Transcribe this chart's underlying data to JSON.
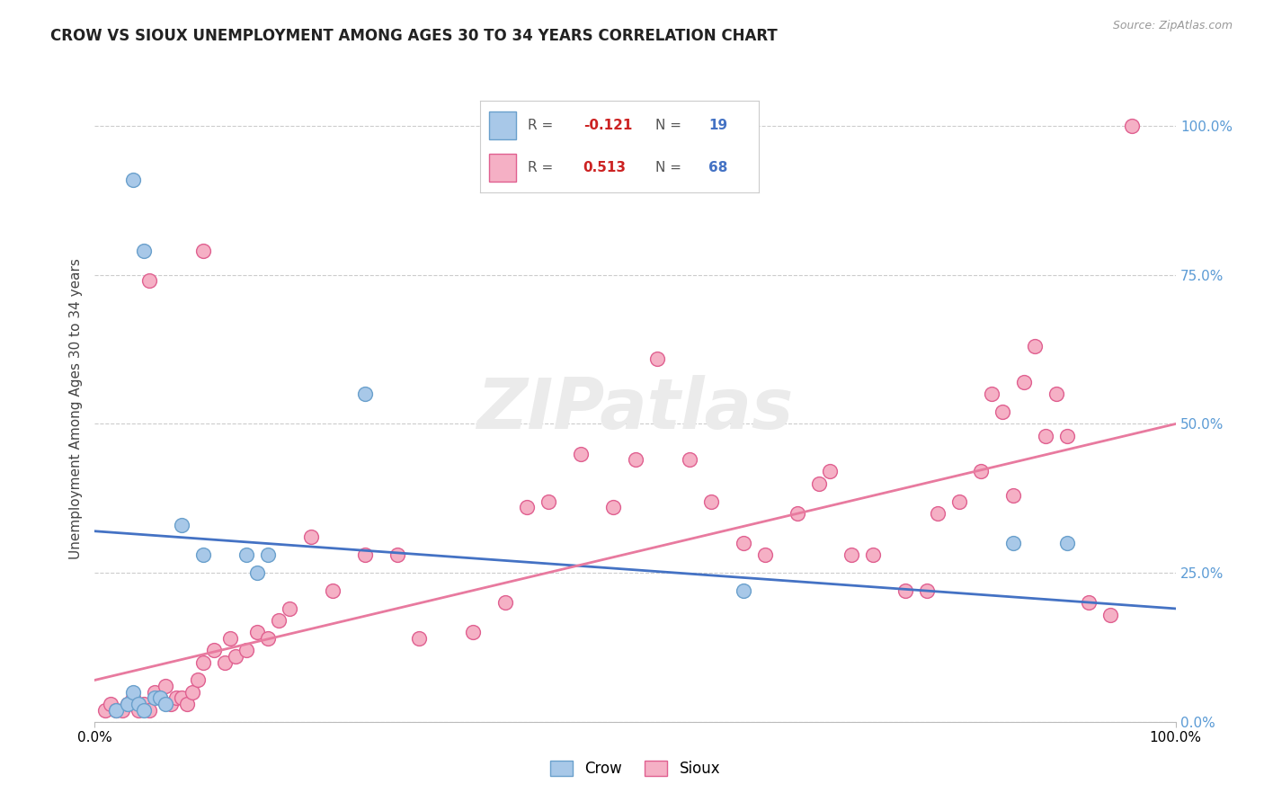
{
  "title": "CROW VS SIOUX UNEMPLOYMENT AMONG AGES 30 TO 34 YEARS CORRELATION CHART",
  "source": "Source: ZipAtlas.com",
  "ylabel": "Unemployment Among Ages 30 to 34 years",
  "right_tick_labels": [
    "0.0%",
    "25.0%",
    "50.0%",
    "75.0%",
    "100.0%"
  ],
  "right_tick_values": [
    0,
    25,
    50,
    75,
    100
  ],
  "xlim": [
    0,
    100
  ],
  "ylim": [
    0,
    105
  ],
  "crow_color": "#a8c8e8",
  "crow_edge": "#6aa0cc",
  "sioux_color": "#f5b0c5",
  "sioux_edge": "#e06090",
  "crow_R": -0.121,
  "crow_N": 19,
  "sioux_R": 0.513,
  "sioux_N": 68,
  "crow_line_x": [
    0,
    100
  ],
  "crow_line_y": [
    32,
    19
  ],
  "sioux_line_x": [
    0,
    100
  ],
  "sioux_line_y": [
    7,
    50
  ],
  "crow_points": [
    [
      3.5,
      91
    ],
    [
      4.5,
      79
    ],
    [
      8.0,
      33
    ],
    [
      10.0,
      28
    ],
    [
      14.0,
      28
    ],
    [
      15.0,
      25
    ],
    [
      16.0,
      28
    ],
    [
      25.0,
      55
    ],
    [
      60.0,
      22
    ],
    [
      85.0,
      30
    ],
    [
      90.0,
      30
    ],
    [
      2.0,
      2
    ],
    [
      3.0,
      3
    ],
    [
      3.5,
      5
    ],
    [
      4.0,
      3
    ],
    [
      4.5,
      2
    ],
    [
      5.5,
      4
    ],
    [
      6.0,
      4
    ],
    [
      6.5,
      3
    ]
  ],
  "sioux_points": [
    [
      1.0,
      2
    ],
    [
      1.5,
      3
    ],
    [
      2.0,
      2
    ],
    [
      2.5,
      2
    ],
    [
      3.0,
      3
    ],
    [
      3.5,
      4
    ],
    [
      4.0,
      2
    ],
    [
      4.5,
      3
    ],
    [
      5.0,
      2
    ],
    [
      5.5,
      5
    ],
    [
      6.0,
      4
    ],
    [
      6.5,
      6
    ],
    [
      7.0,
      3
    ],
    [
      7.5,
      4
    ],
    [
      8.0,
      4
    ],
    [
      8.5,
      3
    ],
    [
      9.0,
      5
    ],
    [
      9.5,
      7
    ],
    [
      10.0,
      10
    ],
    [
      11.0,
      12
    ],
    [
      12.0,
      10
    ],
    [
      12.5,
      14
    ],
    [
      13.0,
      11
    ],
    [
      14.0,
      12
    ],
    [
      15.0,
      15
    ],
    [
      16.0,
      14
    ],
    [
      17.0,
      17
    ],
    [
      18.0,
      19
    ],
    [
      5.0,
      74
    ],
    [
      10.0,
      79
    ],
    [
      20.0,
      31
    ],
    [
      22.0,
      22
    ],
    [
      25.0,
      28
    ],
    [
      28.0,
      28
    ],
    [
      30.0,
      14
    ],
    [
      35.0,
      15
    ],
    [
      38.0,
      20
    ],
    [
      40.0,
      36
    ],
    [
      42.0,
      37
    ],
    [
      45.0,
      45
    ],
    [
      48.0,
      36
    ],
    [
      50.0,
      44
    ],
    [
      52.0,
      61
    ],
    [
      55.0,
      44
    ],
    [
      57.0,
      37
    ],
    [
      60.0,
      30
    ],
    [
      62.0,
      28
    ],
    [
      65.0,
      35
    ],
    [
      67.0,
      40
    ],
    [
      68.0,
      42
    ],
    [
      70.0,
      28
    ],
    [
      72.0,
      28
    ],
    [
      75.0,
      22
    ],
    [
      77.0,
      22
    ],
    [
      78.0,
      35
    ],
    [
      80.0,
      37
    ],
    [
      82.0,
      42
    ],
    [
      83.0,
      55
    ],
    [
      84.0,
      52
    ],
    [
      85.0,
      38
    ],
    [
      86.0,
      57
    ],
    [
      87.0,
      63
    ],
    [
      88.0,
      48
    ],
    [
      89.0,
      55
    ],
    [
      90.0,
      48
    ],
    [
      92.0,
      20
    ],
    [
      94.0,
      18
    ],
    [
      96.0,
      100
    ]
  ]
}
